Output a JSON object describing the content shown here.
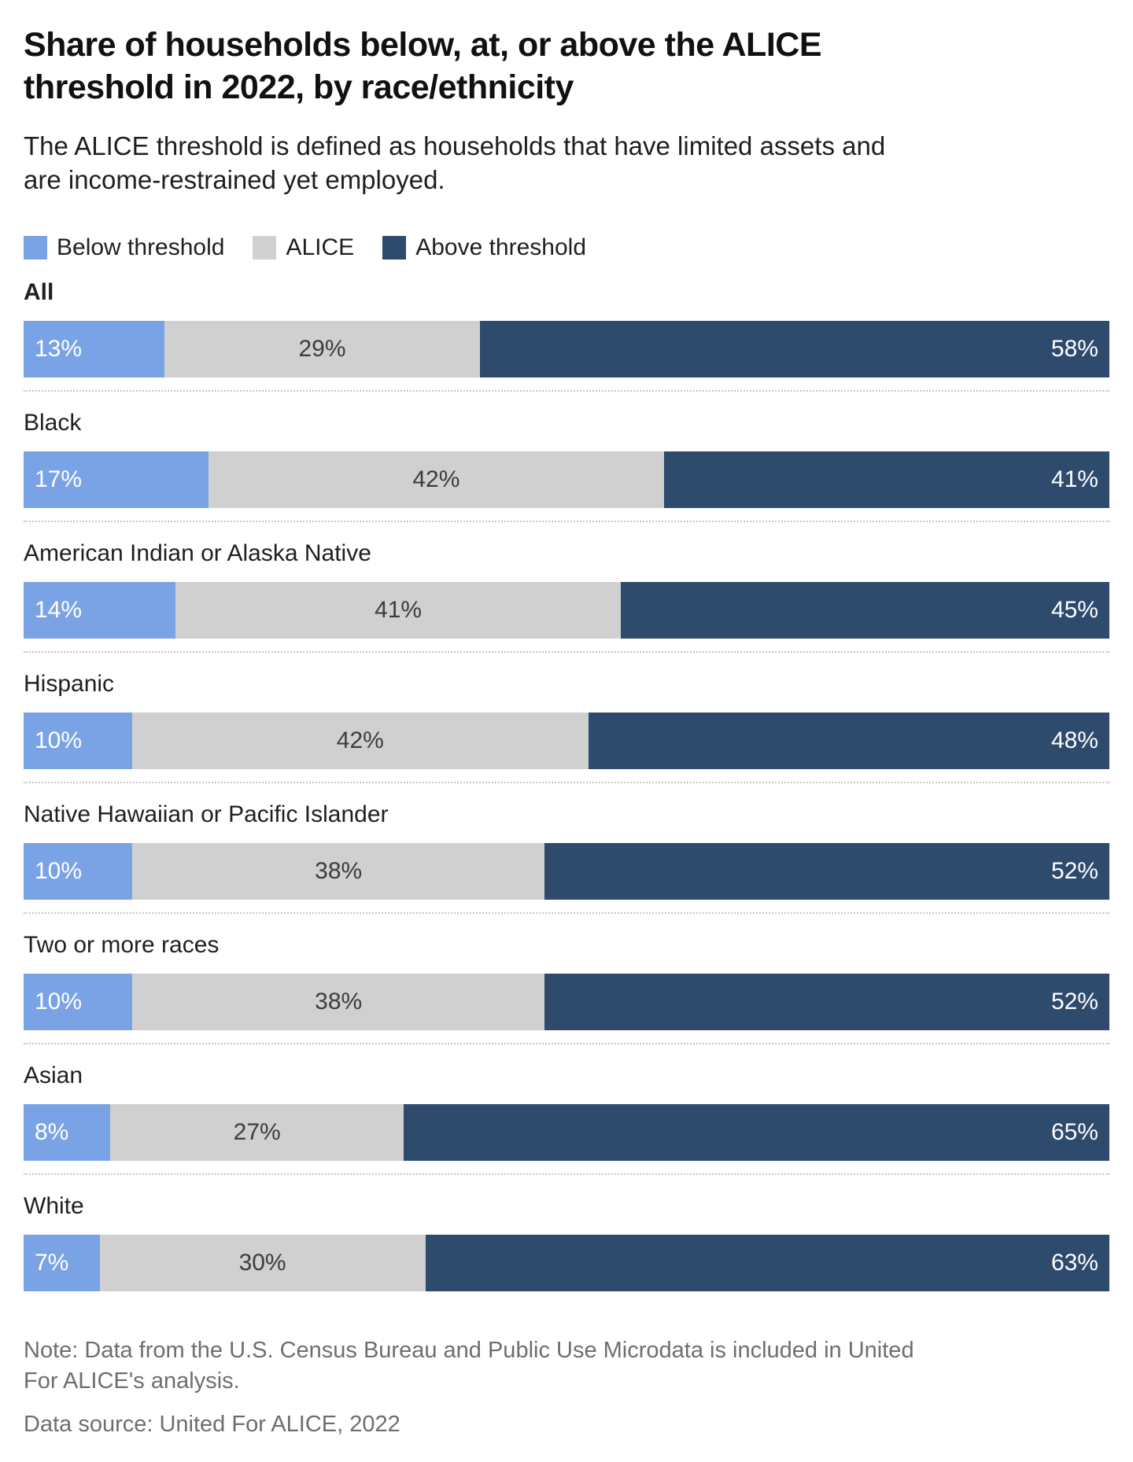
{
  "header": {
    "title": "Share of households below, at, or above the ALICE threshold in 2022, by race/ethnicity",
    "subtitle": "The ALICE threshold is defined as households that have limited assets and are income-restrained yet employed."
  },
  "legend": [
    {
      "label": "Below threshold",
      "color": "#7aa3e6"
    },
    {
      "label": "ALICE",
      "color": "#d0d0d0"
    },
    {
      "label": "Above threshold",
      "color": "#2e4a6d"
    }
  ],
  "chart_data": {
    "type": "bar",
    "orientation": "horizontal-stacked",
    "title": "Share of households below, at, or above the ALICE threshold in 2022, by race/ethnicity",
    "subtitle": "The ALICE threshold is defined as households that have limited assets and are income-restrained yet employed.",
    "value_suffix": "%",
    "xlim": [
      0,
      100
    ],
    "grid": false,
    "legend_position": "top",
    "categories": [
      "All",
      "Black",
      "American Indian or Alaska Native",
      "Hispanic",
      "Native Hawaiian or Pacific Islander",
      "Two or more races",
      "Asian",
      "White"
    ],
    "series": [
      {
        "name": "Below threshold",
        "color": "#7aa3e6",
        "values": [
          13,
          17,
          14,
          10,
          10,
          10,
          8,
          7
        ]
      },
      {
        "name": "ALICE",
        "color": "#d0d0d0",
        "values": [
          29,
          42,
          41,
          42,
          38,
          38,
          27,
          30
        ]
      },
      {
        "name": "Above threshold",
        "color": "#2e4a6d",
        "values": [
          58,
          41,
          45,
          48,
          52,
          52,
          65,
          63
        ]
      }
    ]
  },
  "footer": {
    "note": "Note: Data from the U.S. Census Bureau and Public Use Microdata is included in United For ALICE's analysis.",
    "source": "Data source: United For ALICE, 2022"
  }
}
